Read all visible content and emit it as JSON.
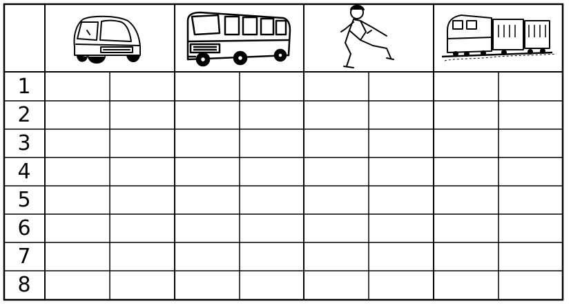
{
  "header_icons": [
    "car-icon",
    "bus-icon",
    "running-person-icon",
    "train-icon"
  ],
  "row_labels": [
    "1",
    "2",
    "3",
    "4",
    "5",
    "6",
    "7",
    "8"
  ],
  "colors": {
    "line": "#000000",
    "paper": "#ffffff"
  }
}
